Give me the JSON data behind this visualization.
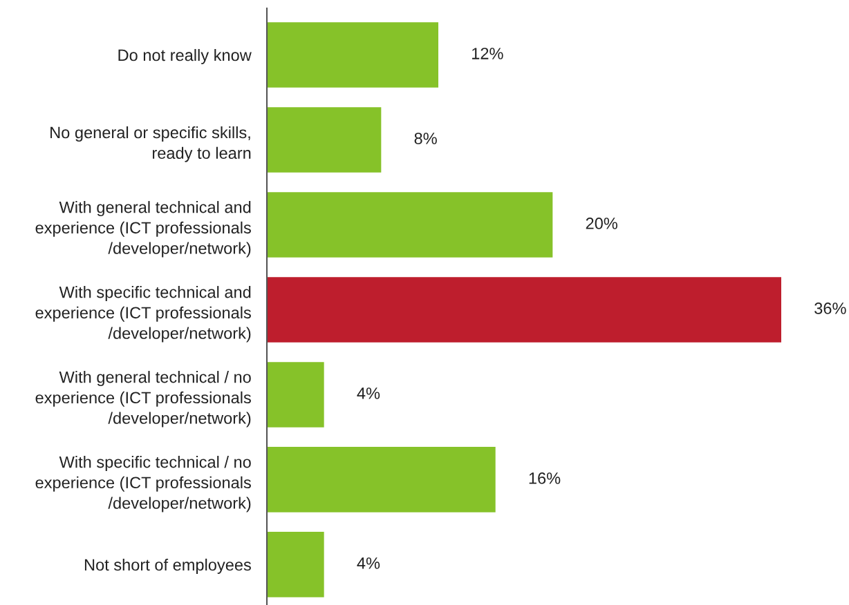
{
  "chart_data": {
    "type": "bar",
    "orientation": "horizontal",
    "categories": [
      "Do not really know",
      "No general or specific skills,\nready to learn",
      "With general technical and\nexperience (ICT professionals\n/developer/network)",
      "With specific technical and\nexperience (ICT professionals\n/developer/network)",
      "With general technical / no\nexperience (ICT professionals\n/developer/network)",
      "With specific technical / no\nexperience (ICT professionals\n/developer/network)",
      "Not short of employees"
    ],
    "values": [
      12,
      8,
      20,
      36,
      4,
      16,
      4
    ],
    "value_labels": [
      "12%",
      "8%",
      "20%",
      "36%",
      "4%",
      "16%",
      "4%"
    ],
    "colors": [
      "#86c229",
      "#86c229",
      "#86c229",
      "#be1e2d",
      "#86c229",
      "#86c229",
      "#86c229"
    ],
    "grid": false,
    "legend": false
  }
}
